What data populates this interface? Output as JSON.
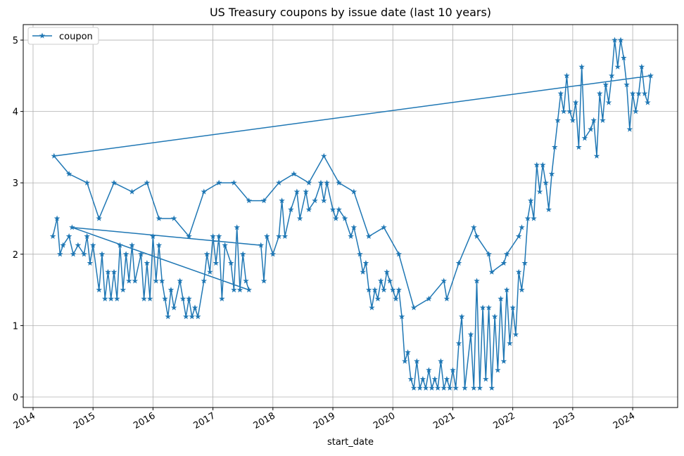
{
  "chart_data": {
    "type": "line",
    "title": "US Treasury coupons by issue date (last 10 years)",
    "x_label": "start_date",
    "x": [
      2014.33,
      2014.4,
      2014.45,
      2014.5,
      2014.6,
      2014.67,
      2014.75,
      2014.85,
      2014.9,
      2014.95,
      2015.0,
      2015.1,
      2015.15,
      2015.2,
      2015.25,
      2015.3,
      2015.35,
      2015.4,
      2015.45,
      2015.5,
      2015.55,
      2015.6,
      2015.65,
      2015.7,
      2015.8,
      2015.85,
      2015.9,
      2015.95,
      2016.0,
      2016.05,
      2016.1,
      2016.15,
      2016.2,
      2016.25,
      2016.3,
      2016.35,
      2016.45,
      2016.5,
      2016.55,
      2016.6,
      2016.65,
      2016.7,
      2016.75,
      2016.85,
      2016.9,
      2016.95,
      2017.0,
      2017.05,
      2017.1,
      2017.15,
      2017.2,
      2017.3,
      2017.35,
      2017.4,
      2017.45,
      2017.5,
      2017.55,
      2017.6,
      2014.65,
      2017.8,
      2017.85,
      2017.9,
      2018.0,
      2018.1,
      2018.15,
      2018.2,
      2018.3,
      2018.4,
      2018.45,
      2018.55,
      2018.6,
      2018.7,
      2018.8,
      2018.85,
      2018.9,
      2019.0,
      2019.05,
      2019.1,
      2019.2,
      2019.3,
      2019.35,
      2019.45,
      2019.5,
      2019.55,
      2019.6,
      2019.65,
      2019.7,
      2019.75,
      2019.8,
      2019.85,
      2019.9,
      2019.95,
      2020.0,
      2020.05,
      2020.1,
      2020.15,
      2020.2,
      2020.25,
      2020.3,
      2020.35,
      2020.4,
      2020.45,
      2020.5,
      2020.55,
      2020.6,
      2020.65,
      2020.7,
      2020.75,
      2020.8,
      2020.85,
      2020.9,
      2020.95,
      2021.0,
      2021.05,
      2021.1,
      2021.15,
      2021.2,
      2021.3,
      2021.35,
      2021.4,
      2021.45,
      2021.5,
      2021.55,
      2021.6,
      2021.65,
      2021.7,
      2021.75,
      2021.8,
      2021.85,
      2021.9,
      2021.95,
      2022.0,
      2022.05,
      2022.1,
      2022.15,
      2022.2,
      2022.25,
      2022.3,
      2022.35,
      2022.4,
      2022.45,
      2022.5,
      2022.55,
      2022.6,
      2022.65,
      2022.7,
      2022.75,
      2022.8,
      2022.85,
      2022.9,
      2022.95,
      2023.0,
      2023.05,
      2023.1,
      2023.15,
      2023.2,
      2023.3,
      2023.35,
      2023.4,
      2023.45,
      2023.5,
      2023.55,
      2023.6,
      2023.65,
      2023.7,
      2023.75,
      2023.8,
      2023.85,
      2023.9,
      2023.95,
      2024.0,
      2024.05,
      2024.1,
      2024.15,
      2024.2,
      2024.25,
      2024.3,
      2014.35,
      2014.6,
      2014.9,
      2015.1,
      2015.35,
      2015.65,
      2015.9,
      2016.1,
      2016.35,
      2016.6,
      2016.85,
      2017.1,
      2017.35,
      2017.6,
      2017.85,
      2018.1,
      2018.35,
      2018.6,
      2018.85,
      2019.1,
      2019.35,
      2019.6,
      2019.85,
      2020.1,
      2020.35,
      2020.6,
      2020.85,
      2020.9,
      2021.1,
      2021.35,
      2021.4,
      2021.6,
      2021.65,
      2021.85,
      2021.9,
      2022.1,
      2022.15
    ],
    "series": [
      {
        "name": "coupon",
        "color": "#1f77b4",
        "marker": "star",
        "values": [
          2.25,
          2.5,
          2.0,
          2.125,
          2.25,
          2.0,
          2.125,
          2.0,
          2.25,
          1.875,
          2.125,
          1.5,
          2.0,
          1.375,
          1.75,
          1.375,
          1.75,
          1.375,
          2.125,
          1.5,
          2.0,
          1.625,
          2.125,
          1.625,
          2.0,
          1.375,
          1.875,
          1.375,
          2.25,
          1.625,
          2.125,
          1.625,
          1.375,
          1.125,
          1.5,
          1.25,
          1.625,
          1.375,
          1.125,
          1.375,
          1.125,
          1.25,
          1.125,
          1.625,
          2.0,
          1.75,
          2.25,
          1.875,
          2.25,
          1.375,
          2.125,
          1.875,
          1.5,
          2.375,
          1.5,
          2.0,
          1.625,
          1.5,
          2.375,
          2.125,
          1.625,
          2.25,
          2.0,
          2.25,
          2.75,
          2.25,
          2.625,
          2.875,
          2.5,
          2.875,
          2.625,
          2.75,
          3.0,
          2.75,
          3.0,
          2.625,
          2.5,
          2.625,
          2.5,
          2.25,
          2.375,
          2.0,
          1.75,
          1.875,
          1.5,
          1.25,
          1.5,
          1.375,
          1.625,
          1.5,
          1.75,
          1.625,
          1.5,
          1.375,
          1.5,
          1.125,
          0.5,
          0.625,
          0.25,
          0.125,
          0.5,
          0.125,
          0.25,
          0.125,
          0.375,
          0.125,
          0.25,
          0.125,
          0.5,
          0.125,
          0.25,
          0.125,
          0.375,
          0.125,
          0.75,
          1.125,
          0.125,
          0.875,
          0.125,
          1.625,
          0.125,
          1.25,
          0.25,
          1.25,
          0.125,
          1.125,
          0.375,
          1.375,
          0.5,
          1.5,
          0.75,
          1.25,
          0.875,
          1.75,
          1.5,
          1.875,
          2.5,
          2.75,
          2.5,
          3.25,
          2.875,
          3.25,
          3.0,
          2.625,
          3.125,
          3.5,
          3.875,
          4.25,
          4.0,
          4.5,
          4.0,
          3.875,
          4.125,
          3.5,
          4.625,
          3.625,
          3.75,
          3.875,
          3.375,
          4.25,
          3.875,
          4.375,
          4.125,
          4.5,
          5.0,
          4.625,
          5.0,
          4.75,
          4.375,
          3.75,
          4.25,
          4.0,
          4.25,
          4.625,
          4.25,
          4.125,
          4.5,
          3.375,
          3.125,
          3.0,
          2.5,
          3.0,
          2.875,
          3.0,
          2.5,
          2.5,
          2.25,
          2.875,
          3.0,
          3.0,
          2.75,
          2.75,
          3.0,
          3.125,
          3.0,
          3.375,
          3.0,
          2.875,
          2.25,
          2.375,
          2.0,
          1.25,
          1.375,
          1.625,
          1.375,
          1.875,
          2.375,
          2.25,
          2.0,
          1.75,
          1.875,
          2.0,
          2.25,
          2.375
        ]
      }
    ],
    "xlim": [
      2013.836,
      2024.75
    ],
    "xticks": [
      2014,
      2015,
      2016,
      2017,
      2018,
      2019,
      2020,
      2021,
      2022,
      2023,
      2024
    ],
    "ylim": [
      -0.148,
      5.217
    ],
    "yticks": [
      0,
      1,
      2,
      3,
      4,
      5
    ],
    "grid": true,
    "legend": "upper left"
  }
}
